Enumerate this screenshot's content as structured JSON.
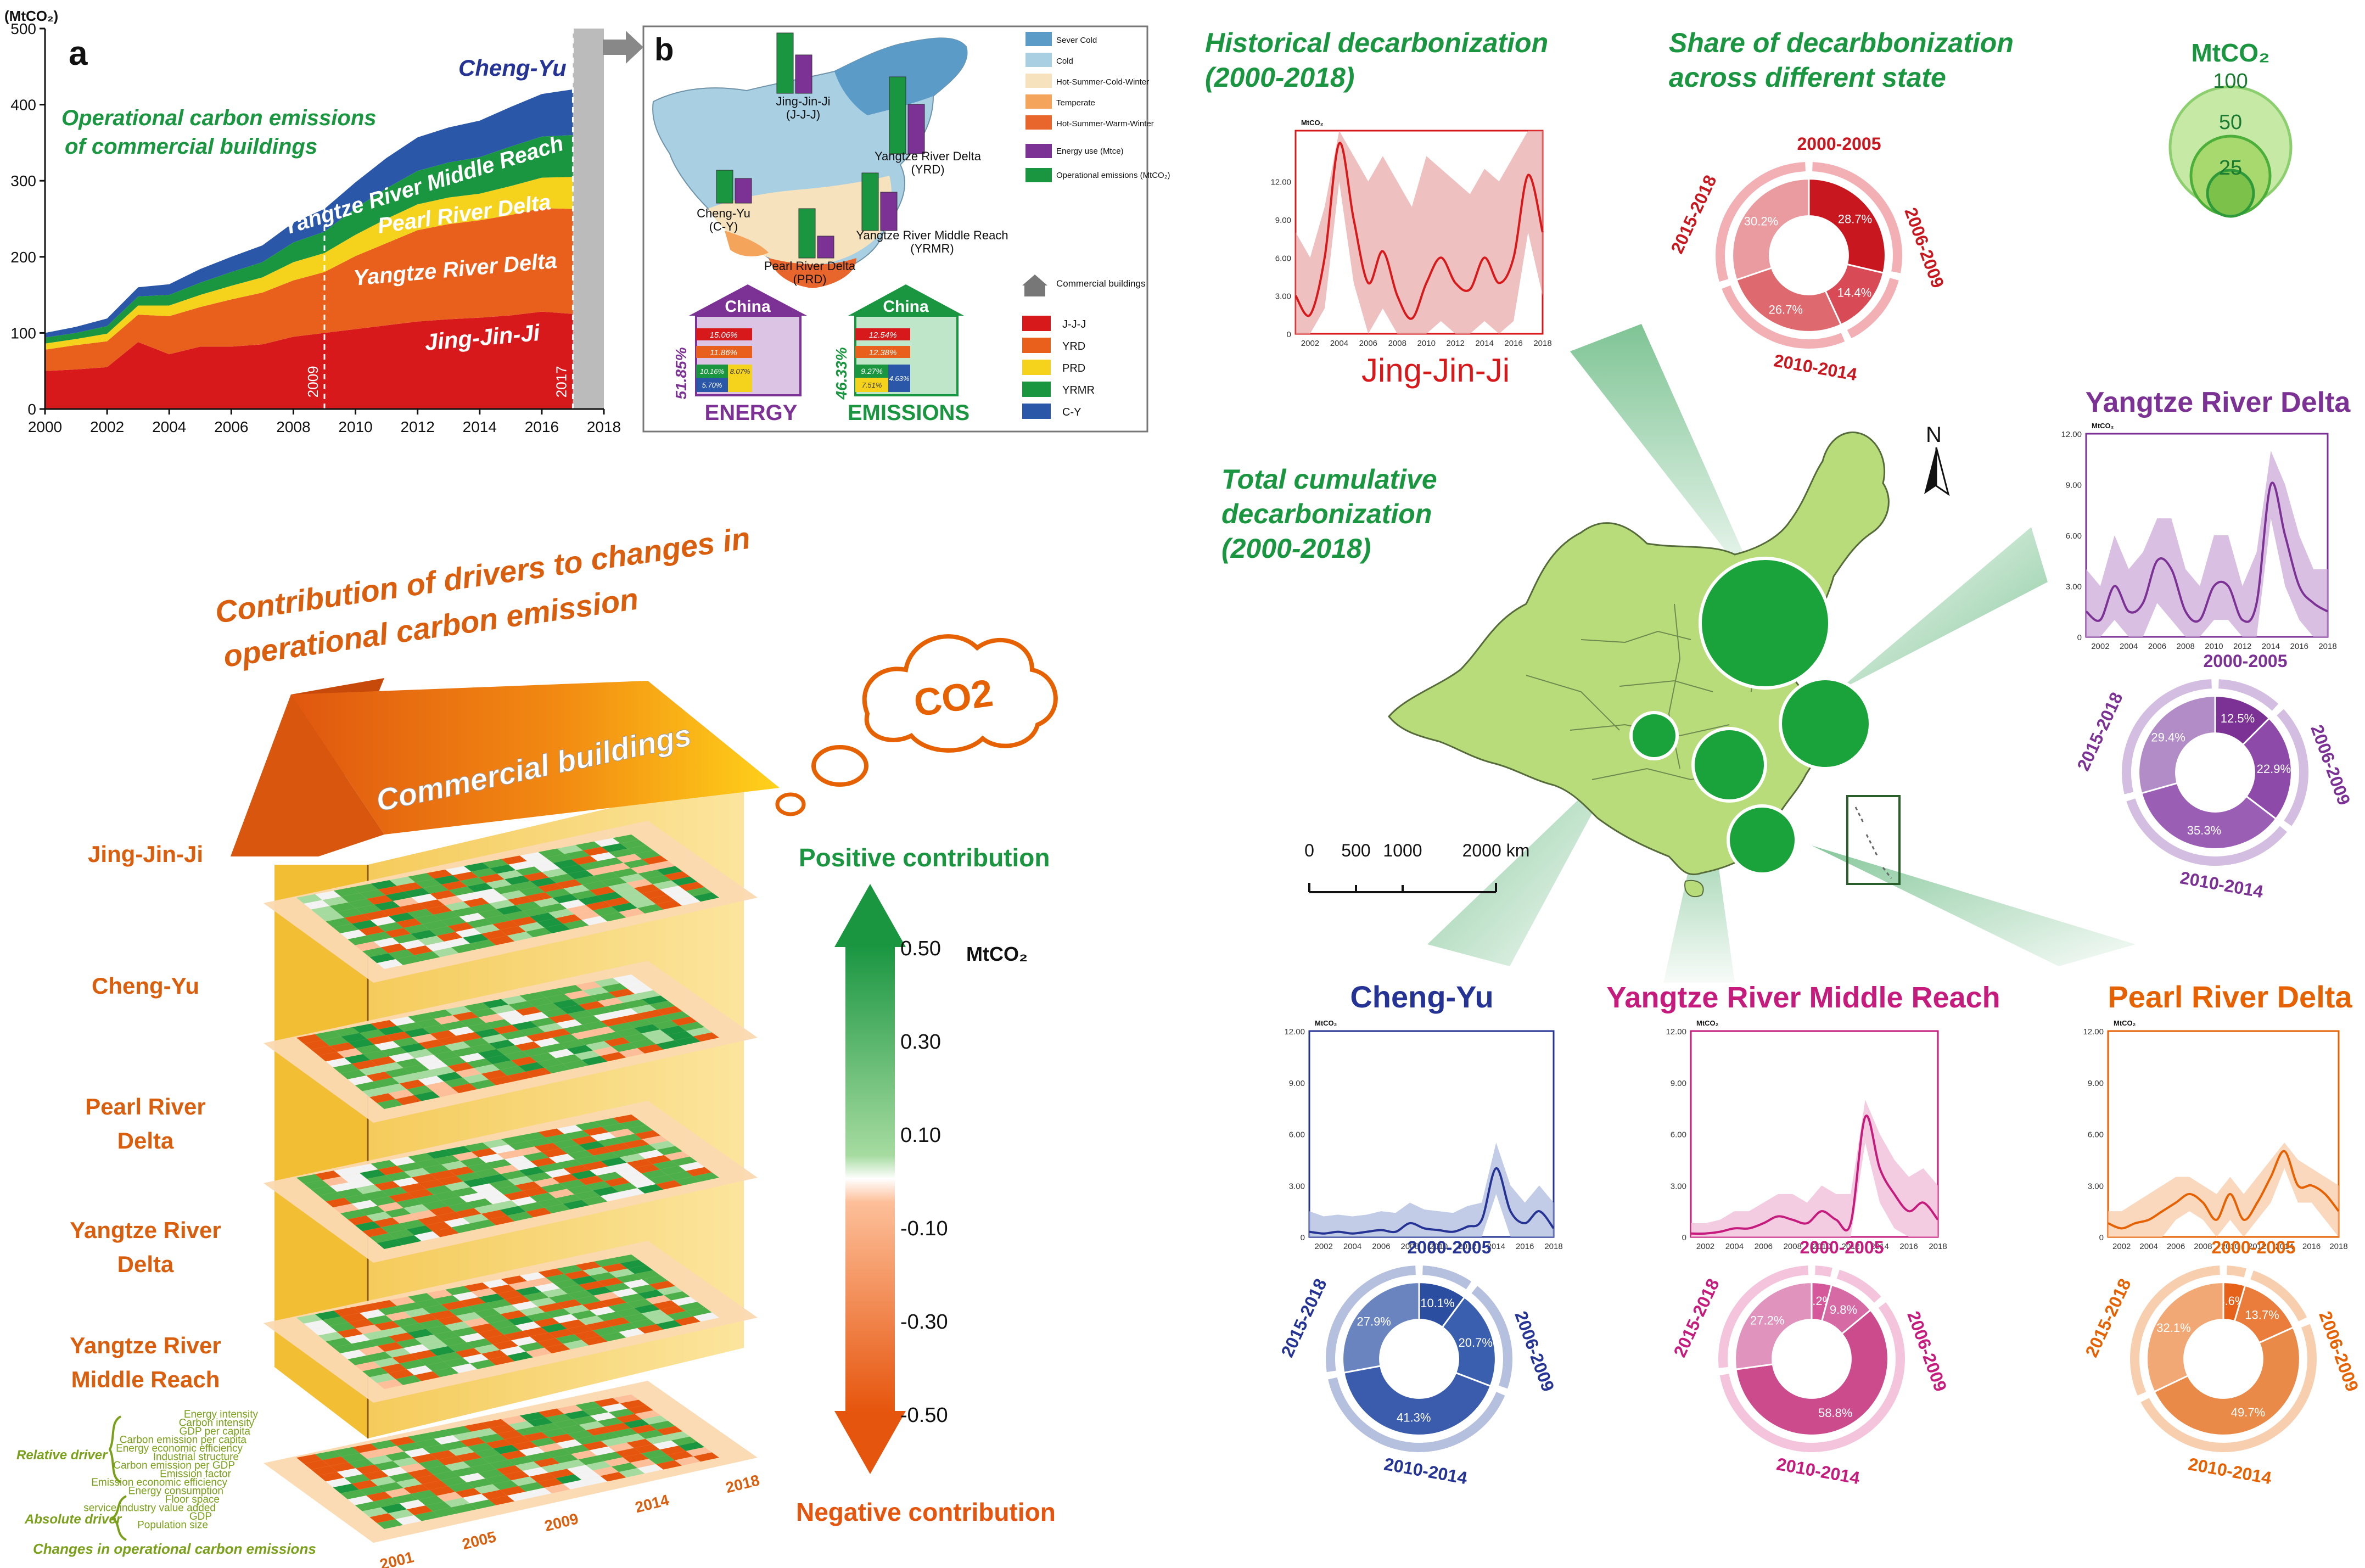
{
  "colors": {
    "jjj": "#d7191c",
    "yrd": "#e8601c",
    "prd": "#f5d31d",
    "yrmr": "#1a9641",
    "cy": "#2b57a8",
    "region_title_jjj": "#d7191c",
    "region_title_yrd": "#7b3294",
    "region_title_cy": "#253494",
    "region_title_yrmr": "#c51b7d",
    "region_title_prd": "#e66101",
    "green_title": "#1a9641",
    "orange_title": "#d95f0e",
    "purple": "#7b3294"
  },
  "panel_a": {
    "label": "a",
    "ylabel": "(MtCO₂)",
    "note": "Operational carbon emissions\nof commercial buildings",
    "note_line1": "Operational carbon emissions",
    "note_line2": "of commercial buildings",
    "marker_left": "2009",
    "marker_right": "2017",
    "series_labels": [
      "Cheng-Yu",
      "Yangtze River Middle Reach",
      "Pearl River Delta",
      "Yangtze River Delta",
      "Jing-Jin-Ji"
    ]
  },
  "panel_b": {
    "label": "b",
    "legend_climate": [
      "Sever Cold",
      "Cold",
      "Hot-Summer-Cold-Winter",
      "Temperate",
      "Hot-Summer-Warm-Winter"
    ],
    "legend_bars": [
      "Energy use (Mtce)",
      "Operational emissions (MtCO₂)"
    ],
    "legend_buildings": "Commercial buildings",
    "legend_regions": [
      "J-J-J",
      "YRD",
      "PRD",
      "YRMR",
      "C-Y"
    ],
    "region_labels": [
      "Jing-Jin-Ji (J-J-J)",
      "Yangtze River Delta (YRD)",
      "Cheng-Yu (C-Y)",
      "Yangtze River Middle Reach (YRMR)",
      "Pearl River Delta (PRD)"
    ],
    "house_title": "China",
    "energy_label": "ENERGY",
    "emissions_label": "EMISSIONS",
    "energy_pct": "51.85%",
    "emissions_pct": "46.33%",
    "energy_values": [
      "15.06%",
      "11.86%",
      "10.16%",
      "8.07%",
      "5.70%"
    ],
    "emission_values": [
      "12.54%",
      "12.38%",
      "9.27%",
      "4.63%",
      "7.51%"
    ]
  },
  "drivers": {
    "title_line1": "Contribution of drivers to changes in",
    "title_line2": "operational carbon emission",
    "roof_label": "Commercial buildings",
    "cloud_label": "CO2",
    "floors": [
      "Jing-Jin-Ji",
      "Cheng-Yu",
      "Pearl River\nDelta",
      "Yangtze River\nDelta",
      "Yangtze River\nMiddle Reach"
    ],
    "floor_labels_1": [
      "Jing-Jin-Ji",
      "Cheng-Yu",
      "Pearl River",
      "Yangtze River",
      "Yangtze River"
    ],
    "floor_labels_2": [
      "",
      "",
      "Delta",
      "Delta",
      "Middle Reach"
    ],
    "driver_names": [
      "Energy intensity",
      "Carbon intensity",
      "GDP per capita",
      "Carbon emission per capita",
      "Energy economic efficiency",
      "Industrial structure",
      "Carbon emission per GDP",
      "Emission factor",
      "Emission economic efficiency",
      "Energy consumption",
      "Floor space",
      "service industry value added",
      "GDP",
      "Population size"
    ],
    "relative_driver": "Relative driver",
    "absolute_driver": "Absolute driver",
    "changes_label": "Changes in operational carbon emissions",
    "years": [
      "2001",
      "2005",
      "2009",
      "2014",
      "2018"
    ],
    "positive": "Positive contribution",
    "negative": "Negative contribution",
    "unit": "MtCO₂",
    "scale": [
      "0.50",
      "0.30",
      "0.10",
      "-0.10",
      "-0.30",
      "-0.50"
    ]
  },
  "right": {
    "hist_title_1": "Historical decarbonization",
    "hist_title_2": "(2000-2018)",
    "share_title_1": "Share of decarbbonization",
    "share_title_2": "across different state",
    "total_title_1": "Total cumulative",
    "total_title_2": "decarbonization",
    "total_title_3": "(2000-2018)",
    "bubble_unit": "MtCO₂",
    "bubble_values": [
      "100",
      "50",
      "25"
    ],
    "north": "N",
    "scalebar": [
      "0",
      "500",
      "1000",
      "2000 km"
    ],
    "mini_unit": "MtCO₂",
    "periods": [
      "2000-2005",
      "2006-2009",
      "2010-2014",
      "2015-2018"
    ]
  },
  "chart_data": [
    {
      "type": "area",
      "title": "",
      "ylabel": "(MtCO₂)",
      "x": [
        2000,
        2001,
        2002,
        2003,
        2004,
        2005,
        2006,
        2007,
        2008,
        2009,
        2010,
        2011,
        2012,
        2013,
        2014,
        2015,
        2016,
        2017
      ],
      "ylim": [
        0,
        500
      ],
      "xlim": [
        2000,
        2018
      ],
      "xticks": [
        2000,
        2002,
        2004,
        2006,
        2008,
        2010,
        2012,
        2014,
        2016,
        2018
      ],
      "yticks": [
        0,
        100,
        200,
        300,
        400,
        500
      ],
      "series": [
        {
          "name": "Jing-Jin-Ji",
          "values": [
            50,
            52,
            55,
            88,
            72,
            82,
            82,
            85,
            95,
            100,
            105,
            110,
            115,
            118,
            120,
            123,
            128,
            125
          ]
        },
        {
          "name": "Yangtze River Delta",
          "values": [
            28,
            32,
            34,
            36,
            50,
            52,
            62,
            68,
            74,
            80,
            96,
            108,
            120,
            125,
            128,
            132,
            136,
            138
          ]
        },
        {
          "name": "Pearl River Delta",
          "values": [
            8,
            8,
            10,
            12,
            14,
            16,
            18,
            20,
            24,
            25,
            28,
            32,
            34,
            35,
            35,
            38,
            40,
            42
          ]
        },
        {
          "name": "Yangtze River Middle Reach",
          "values": [
            8,
            8,
            10,
            12,
            14,
            16,
            18,
            20,
            26,
            28,
            35,
            40,
            44,
            46,
            48,
            52,
            54,
            55
          ]
        },
        {
          "name": "Cheng-Yu",
          "values": [
            6,
            8,
            10,
            12,
            14,
            18,
            20,
            22,
            26,
            30,
            34,
            40,
            44,
            46,
            48,
            52,
            56,
            60
          ]
        }
      ]
    },
    {
      "type": "line",
      "region": "Jing-Jin-Ji",
      "ylabel": "MtCO₂",
      "ylim": [
        0,
        16
      ],
      "xlim": [
        2001,
        2018
      ],
      "yticks": [
        0,
        3,
        6,
        9,
        12
      ],
      "ytick_labels": [
        "0",
        "3.00",
        "6.00",
        "9.00",
        "12.00"
      ],
      "xticks": [
        2002,
        2004,
        2006,
        2008,
        2010,
        2012,
        2014,
        2016,
        2018
      ],
      "x": [
        2001,
        2002,
        2003,
        2004,
        2005,
        2006,
        2007,
        2008,
        2009,
        2010,
        2011,
        2012,
        2013,
        2014,
        2015,
        2016,
        2017,
        2018
      ],
      "values": [
        3,
        1.5,
        6,
        15,
        9,
        4,
        6.5,
        3,
        1.2,
        4,
        6,
        4,
        3.5,
        6,
        4,
        6,
        12.5,
        8
      ],
      "band_upper": [
        8,
        6,
        10,
        16,
        14,
        12,
        14,
        12,
        10,
        14,
        13,
        12,
        11,
        13,
        12,
        14,
        16,
        16
      ],
      "band_lower": [
        0,
        0,
        2,
        12,
        4,
        0,
        2,
        0,
        0,
        0,
        1,
        0,
        0,
        1,
        0,
        1,
        8,
        3
      ],
      "donut": [
        28.7,
        14.4,
        26.7,
        30.2
      ],
      "donut_labels": [
        "28.7%",
        "14.4%",
        "26.7%",
        "30.2%"
      ]
    },
    {
      "type": "line",
      "region": "Yangtze River Delta",
      "ylabel": "MtCO₂",
      "ylim": [
        0,
        12
      ],
      "xlim": [
        2001,
        2018
      ],
      "yticks": [
        0,
        3,
        6,
        9,
        12
      ],
      "ytick_labels": [
        "0",
        "3.00",
        "6.00",
        "9.00",
        "12.00"
      ],
      "xticks": [
        2002,
        2004,
        2006,
        2008,
        2010,
        2012,
        2014,
        2016,
        2018
      ],
      "x": [
        2001,
        2002,
        2003,
        2004,
        2005,
        2006,
        2007,
        2008,
        2009,
        2010,
        2011,
        2012,
        2013,
        2014,
        2015,
        2016,
        2017,
        2018
      ],
      "values": [
        1.5,
        1,
        3,
        1.5,
        2,
        4.5,
        4,
        1.5,
        1,
        3,
        3,
        1,
        2,
        9,
        6,
        3,
        2,
        1.5
      ],
      "band_upper": [
        4,
        3,
        6,
        4,
        5,
        7,
        7,
        4,
        3,
        6,
        6,
        3,
        5,
        11,
        9,
        6,
        4,
        4
      ],
      "band_lower": [
        0,
        0,
        1,
        0,
        0,
        2,
        1,
        0,
        0,
        1,
        1,
        0,
        0,
        7,
        3,
        1,
        0,
        0
      ],
      "donut": [
        12.5,
        22.9,
        35.3,
        29.4
      ],
      "donut_labels": [
        "12.5%",
        "22.9%",
        "35.3%",
        "29.4%"
      ]
    },
    {
      "type": "line",
      "region": "Cheng-Yu",
      "ylabel": "MtCO₂",
      "ylim": [
        0,
        12
      ],
      "xlim": [
        2001,
        2018
      ],
      "yticks": [
        0,
        3,
        6,
        9,
        12
      ],
      "ytick_labels": [
        "0",
        "3.00",
        "6.00",
        "9.00",
        "12.00"
      ],
      "xticks": [
        2002,
        2004,
        2006,
        2008,
        2010,
        2012,
        2014,
        2016,
        2018
      ],
      "x": [
        2001,
        2002,
        2003,
        2004,
        2005,
        2006,
        2007,
        2008,
        2009,
        2010,
        2011,
        2012,
        2013,
        2014,
        2015,
        2016,
        2017,
        2018
      ],
      "values": [
        0.3,
        0.2,
        0.3,
        0.2,
        0.3,
        0.4,
        0.3,
        0.8,
        0.5,
        0.4,
        0.3,
        0.6,
        1,
        4,
        1.5,
        0.8,
        1.5,
        0.5
      ],
      "band_upper": [
        1.5,
        1.2,
        1.3,
        1.2,
        1.3,
        1.5,
        1.4,
        2,
        1.6,
        1.5,
        1.4,
        1.8,
        2,
        5.5,
        3,
        2,
        3,
        2
      ],
      "band_lower": [
        0,
        0,
        0,
        0,
        0,
        0,
        0,
        0,
        0,
        0,
        0,
        0,
        0,
        2.5,
        0,
        0,
        0,
        0
      ],
      "donut": [
        10.1,
        20.7,
        41.3,
        27.9
      ],
      "donut_labels": [
        "10.1%",
        "20.7%",
        "41.3%",
        "27.9%"
      ]
    },
    {
      "type": "line",
      "region": "Yangtze River Middle Reach",
      "ylabel": "MtCO₂",
      "ylim": [
        0,
        12
      ],
      "xlim": [
        2001,
        2018
      ],
      "yticks": [
        0,
        3,
        6,
        9,
        12
      ],
      "ytick_labels": [
        "0",
        "3.00",
        "6.00",
        "9.00",
        "12.00"
      ],
      "xticks": [
        2002,
        2004,
        2006,
        2008,
        2010,
        2012,
        2014,
        2016,
        2018
      ],
      "x": [
        2001,
        2002,
        2003,
        2004,
        2005,
        2006,
        2007,
        2008,
        2009,
        2010,
        2011,
        2012,
        2013,
        2014,
        2015,
        2016,
        2017,
        2018
      ],
      "values": [
        0.2,
        0.2,
        0.3,
        0.5,
        0.5,
        0.8,
        1.2,
        1,
        0.8,
        1.5,
        1,
        0.8,
        7,
        4,
        2.5,
        1.5,
        2,
        1
      ],
      "band_upper": [
        0.8,
        0.8,
        1,
        1.5,
        1.5,
        2,
        2.5,
        2.5,
        2,
        3,
        2.5,
        2.5,
        8,
        6,
        4.5,
        3.5,
        4,
        3
      ],
      "band_lower": [
        0,
        0,
        0,
        0,
        0,
        0,
        0,
        0,
        0,
        0,
        0,
        0,
        5.5,
        2,
        0.5,
        0,
        0,
        0
      ],
      "donut": [
        4.2,
        9.8,
        58.8,
        27.2
      ],
      "donut_labels": [
        "4.2%",
        "9.8%",
        "58.8%",
        "27.2%"
      ]
    },
    {
      "type": "line",
      "region": "Pearl River Delta",
      "ylabel": "MtCO₂",
      "ylim": [
        0,
        12
      ],
      "xlim": [
        2001,
        2018
      ],
      "yticks": [
        0,
        3,
        6,
        9,
        12
      ],
      "ytick_labels": [
        "0",
        "3.00",
        "6.00",
        "9.00",
        "12.00"
      ],
      "xticks": [
        2002,
        2004,
        2006,
        2008,
        2010,
        2012,
        2014,
        2016,
        2018
      ],
      "x": [
        2001,
        2002,
        2003,
        2004,
        2005,
        2006,
        2007,
        2008,
        2009,
        2010,
        2011,
        2012,
        2013,
        2014,
        2015,
        2016,
        2017,
        2018
      ],
      "values": [
        0.8,
        0.5,
        0.8,
        1,
        1.5,
        2,
        2.5,
        2,
        1,
        2.5,
        1,
        2,
        3.5,
        5,
        3,
        3,
        2.5,
        1.5
      ],
      "band_upper": [
        1.5,
        1.5,
        2,
        2.5,
        3,
        3.5,
        3.5,
        3,
        2.5,
        3.5,
        2.5,
        3.5,
        4.5,
        5.5,
        4.5,
        4,
        3.5,
        3
      ],
      "band_lower": [
        0,
        0,
        0,
        0,
        0,
        1,
        1.5,
        1,
        0,
        1,
        0,
        1,
        2,
        4,
        2,
        2,
        1,
        0
      ],
      "donut": [
        4.6,
        13.7,
        49.7,
        32.1
      ],
      "donut_labels": [
        "4.6%",
        "13.7%",
        "49.7%",
        "32.1%"
      ]
    }
  ]
}
